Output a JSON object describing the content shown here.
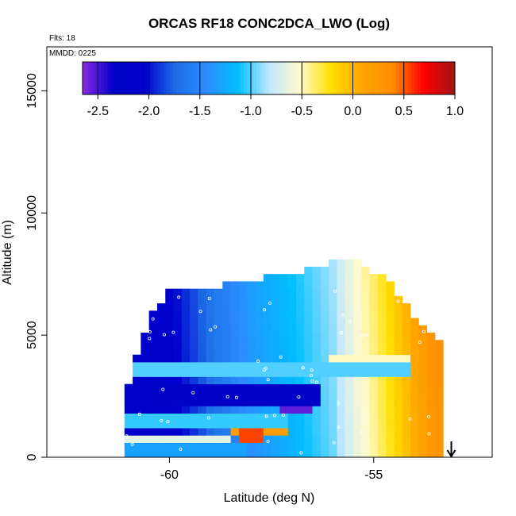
{
  "chart_data": {
    "type": "heatmap",
    "title": "ORCAS RF18 CONC2DCA_LWO (Log)",
    "flights_note": "Flts: 18",
    "mmdd_note": "MMDD: 0225",
    "xlabel": "Latitude (deg N)",
    "ylabel": "Altitude (m)",
    "xlim": [
      -63,
      -52.1
    ],
    "ylim": [
      0,
      16800
    ],
    "x_ticks": [
      -60,
      -55
    ],
    "x_tick_labels": [
      "-60",
      "-55"
    ],
    "y_ticks": [
      0,
      5000,
      10000,
      15000
    ],
    "y_tick_labels": [
      "0",
      "5000",
      "10000",
      "15000"
    ],
    "colorbar": {
      "range": [
        -2.65,
        1.0
      ],
      "ticks": [
        -2.5,
        -2.0,
        -1.5,
        -1.0,
        -0.5,
        0.0,
        0.5,
        1.0
      ],
      "tick_labels": [
        "-2.5",
        "-2.0",
        "-1.5",
        "-1.0",
        "-0.5",
        "0.0",
        "0.5",
        "1.0"
      ],
      "colors": [
        "#8a2be2",
        "#0000c8",
        "#0000cd",
        "#1e6fe8",
        "#2b8cff",
        "#00bfff",
        "#bfe8ff",
        "#fffacd",
        "#ffe000",
        "#ffa500",
        "#ff8c00",
        "#ff0000",
        "#a01515"
      ]
    },
    "arrow_marker_lat": -53.1,
    "region": {
      "lat_bounds": [
        -61.1,
        -53.3
      ],
      "top_altitude_profile": [
        {
          "lat": -61.1,
          "alt": 2000
        },
        {
          "lat": -60.9,
          "alt": 3500
        },
        {
          "lat": -60.7,
          "alt": 4400
        },
        {
          "lat": -60.5,
          "alt": 5500
        },
        {
          "lat": -60.0,
          "alt": 6600
        },
        {
          "lat": -59.0,
          "alt": 6800
        },
        {
          "lat": -58.0,
          "alt": 7100
        },
        {
          "lat": -57.0,
          "alt": 7400
        },
        {
          "lat": -56.0,
          "alt": 7800
        },
        {
          "lat": -55.5,
          "alt": 8000
        },
        {
          "lat": -55.0,
          "alt": 7500
        },
        {
          "lat": -54.5,
          "alt": 6800
        },
        {
          "lat": -54.0,
          "alt": 5700
        },
        {
          "lat": -53.6,
          "alt": 5000
        },
        {
          "lat": -53.3,
          "alt": 4700
        }
      ],
      "value_by_latitude_upper": [
        {
          "lat": -61.0,
          "value": -2.2
        },
        {
          "lat": -60.0,
          "value": -2.1
        },
        {
          "lat": -59.0,
          "value": -1.7
        },
        {
          "lat": -58.0,
          "value": -1.35
        },
        {
          "lat": -57.0,
          "value": -1.15
        },
        {
          "lat": -56.0,
          "value": -0.9
        },
        {
          "lat": -55.5,
          "value": -0.6
        },
        {
          "lat": -55.0,
          "value": -0.4
        },
        {
          "lat": -54.5,
          "value": -0.15
        },
        {
          "lat": -54.0,
          "value": 0.1
        },
        {
          "lat": -53.5,
          "value": 0.35
        }
      ],
      "bands": [
        {
          "alt_range": [
            3300,
            3800
          ],
          "lat_range": [
            -61.0,
            -54.0
          ],
          "value": -1.0
        },
        {
          "alt_range": [
            3800,
            4300
          ],
          "lat_range": [
            -56.0,
            -54.0
          ],
          "value": -0.5
        },
        {
          "alt_range": [
            2000,
            2900
          ],
          "lat_range": [
            -60.5,
            -56.2
          ],
          "value": -2.35
        },
        {
          "alt_range": [
            1700,
            2200
          ],
          "lat_range": [
            -57.2,
            -56.5
          ],
          "value": -2.55
        },
        {
          "alt_range": [
            1200,
            1700
          ],
          "lat_range": [
            -61.0,
            -57.0
          ],
          "value": -1.05
        },
        {
          "alt_range": [
            800,
            1200
          ],
          "lat_range": [
            -58.5,
            -57.0
          ],
          "value": 0.2
        },
        {
          "alt_range": [
            700,
            1100
          ],
          "lat_range": [
            -58.2,
            -57.7
          ],
          "value": 0.55
        },
        {
          "alt_range": [
            600,
            1000
          ],
          "lat_range": [
            -61.2,
            -58.5
          ],
          "value": -0.65
        },
        {
          "alt_range": [
            0,
            600
          ],
          "lat_range": [
            -61.2,
            -58.0
          ],
          "value": -1.3
        }
      ]
    }
  }
}
